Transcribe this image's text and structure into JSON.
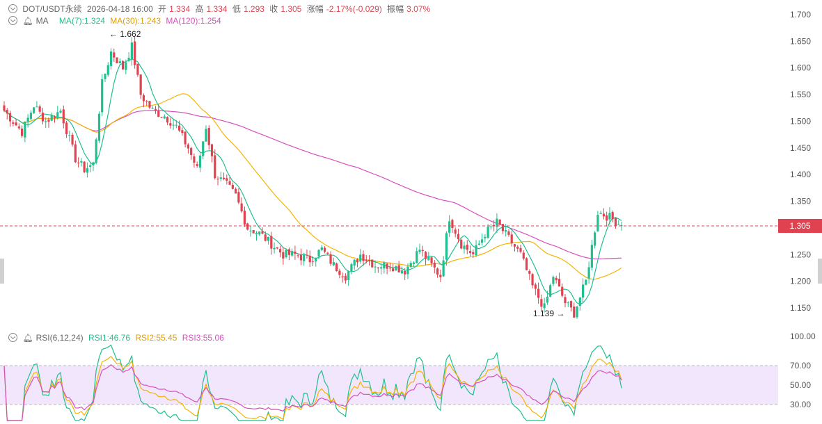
{
  "header": {
    "symbol": "DOT/USDT永续",
    "datetime": "2026-04-18 16:00",
    "open_label": "开",
    "open": "1.334",
    "high_label": "高",
    "high": "1.334",
    "low_label": "低",
    "low": "1.293",
    "close_label": "收",
    "close": "1.305",
    "change_label": "涨幅",
    "change": "-2.17%(-0.029)",
    "amplitude_label": "振幅",
    "amplitude": "3.07%"
  },
  "ma_legend": {
    "name": "MA",
    "ma7": "MA(7):1.324",
    "ma30": "MA(30):1.243",
    "ma120": "MA(120):1.254"
  },
  "rsi_legend": {
    "name": "RSI(6,12,24)",
    "rsi1": "RSI1:46.76",
    "rsi2": "RSI2:55.45",
    "rsi3": "RSI3:55.06"
  },
  "current_price": "1.305",
  "annotations": {
    "max": "← 1.662",
    "min": "1.139 →"
  },
  "colors": {
    "up": "#1fbf8f",
    "down": "#e0434f",
    "ma7": "#1fbf8f",
    "ma30": "#f4b400",
    "ma120": "#d84fc0",
    "rsi1": "#1fbf8f",
    "rsi2": "#f4b400",
    "rsi3": "#d84fc0",
    "rsi_band": "#f1e6fb"
  },
  "chart_data": [
    {
      "type": "candlestick",
      "title": "DOT/USDT永续",
      "y_ticks": [
        "1.700",
        "1.650",
        "1.600",
        "1.550",
        "1.500",
        "1.450",
        "1.400",
        "1.350",
        "1.300",
        "1.250",
        "1.200",
        "1.150"
      ],
      "ylim": [
        1.12,
        1.72
      ],
      "price_path_key_points": [
        [
          0,
          1.52
        ],
        [
          6,
          1.48
        ],
        [
          10,
          1.53
        ],
        [
          14,
          1.5
        ],
        [
          19,
          1.52
        ],
        [
          24,
          1.43
        ],
        [
          27,
          1.41
        ],
        [
          30,
          1.42
        ],
        [
          33,
          1.57
        ],
        [
          36,
          1.63
        ],
        [
          40,
          1.6
        ],
        [
          43,
          1.64
        ],
        [
          46,
          1.55
        ],
        [
          50,
          1.52
        ],
        [
          54,
          1.51
        ],
        [
          58,
          1.49
        ],
        [
          62,
          1.45
        ],
        [
          65,
          1.41
        ],
        [
          68,
          1.49
        ],
        [
          71,
          1.4
        ],
        [
          75,
          1.38
        ],
        [
          78,
          1.36
        ],
        [
          82,
          1.3
        ],
        [
          86,
          1.29
        ],
        [
          90,
          1.27
        ],
        [
          94,
          1.25
        ],
        [
          98,
          1.25
        ],
        [
          103,
          1.24
        ],
        [
          107,
          1.26
        ],
        [
          111,
          1.23
        ],
        [
          115,
          1.21
        ],
        [
          120,
          1.25
        ],
        [
          125,
          1.23
        ],
        [
          130,
          1.23
        ],
        [
          135,
          1.22
        ],
        [
          140,
          1.26
        ],
        [
          144,
          1.23
        ],
        [
          147,
          1.21
        ],
        [
          150,
          1.32
        ],
        [
          154,
          1.27
        ],
        [
          158,
          1.25
        ],
        [
          162,
          1.29
        ],
        [
          166,
          1.31
        ],
        [
          170,
          1.28
        ],
        [
          174,
          1.25
        ],
        [
          178,
          1.19
        ],
        [
          182,
          1.15
        ],
        [
          185,
          1.21
        ],
        [
          189,
          1.16
        ],
        [
          192,
          1.14
        ],
        [
          196,
          1.2
        ],
        [
          200,
          1.33
        ],
        [
          204,
          1.32
        ],
        [
          208,
          1.305
        ]
      ],
      "ma7": "1.324",
      "ma30": "1.243",
      "ma120": "1.254",
      "max_label": "1.662",
      "min_label": "1.139",
      "last_price": "1.305"
    },
    {
      "type": "line",
      "title": "RSI(6,12,24)",
      "y_ticks": [
        "100.00",
        "70.00",
        "50.00",
        "30.00"
      ],
      "ylim": [
        20,
        100
      ],
      "band": [
        30,
        70
      ],
      "series": [
        {
          "name": "RSI1",
          "last": 46.76
        },
        {
          "name": "RSI2",
          "last": 55.45
        },
        {
          "name": "RSI3",
          "last": 55.06
        }
      ]
    }
  ]
}
